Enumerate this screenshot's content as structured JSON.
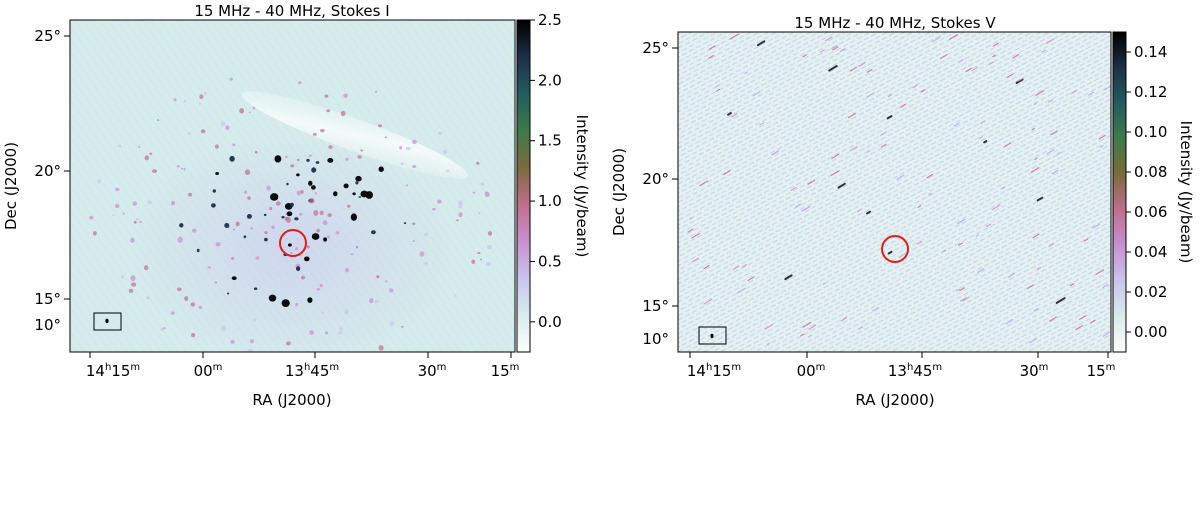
{
  "chart_data": [
    {
      "type": "heatmap",
      "title": "15 MHz - 40 MHz, Stokes I",
      "xlabel": "RA (J2000)",
      "ylabel": "Dec (J2000)",
      "x_ticks": [
        {
          "h": "14",
          "m": "15"
        },
        {
          "h": "",
          "m": "00"
        },
        {
          "h": "13",
          "m": "45"
        },
        {
          "h": "",
          "m": "30"
        },
        {
          "h": "",
          "m": "15"
        }
      ],
      "y_ticks": [
        "25°",
        "20°",
        "15°",
        "10°"
      ],
      "colorbar": {
        "label": "Intensity (Jy/beam)",
        "min": -0.25,
        "max": 2.5,
        "ticks": [
          "2.5",
          "2.0",
          "1.5",
          "1.0",
          "0.5",
          "0.0"
        ],
        "tick_values": [
          2.5,
          2.0,
          1.5,
          1.0,
          0.5,
          0.0
        ]
      },
      "colormap": [
        "#fdfdfb",
        "#d8ecec",
        "#c9c4ee",
        "#c98fd2",
        "#c06f8e",
        "#7c6a3c",
        "#3e7a4a",
        "#235c5e",
        "#1c2f48",
        "#000000"
      ],
      "target_marker_color": "#e41a1c"
    },
    {
      "type": "heatmap",
      "title": "15 MHz - 40 MHz, Stokes V",
      "xlabel": "RA (J2000)",
      "ylabel": "Dec (J2000)",
      "x_ticks": [
        {
          "h": "14",
          "m": "15"
        },
        {
          "h": "",
          "m": "00"
        },
        {
          "h": "13",
          "m": "45"
        },
        {
          "h": "",
          "m": "30"
        },
        {
          "h": "",
          "m": "15"
        }
      ],
      "y_ticks": [
        "25°",
        "20°",
        "15°",
        "10°"
      ],
      "colorbar": {
        "label": "Intensity (Jy/beam)",
        "min": -0.01,
        "max": 0.15,
        "ticks": [
          "0.14",
          "0.12",
          "0.10",
          "0.08",
          "0.06",
          "0.04",
          "0.02",
          "0.00"
        ],
        "tick_values": [
          0.14,
          0.12,
          0.1,
          0.08,
          0.06,
          0.04,
          0.02,
          0.0
        ]
      },
      "colormap": [
        "#fdfdfb",
        "#d8ecec",
        "#c9c4ee",
        "#c98fd2",
        "#c06f8e",
        "#7c6a3c",
        "#3e7a4a",
        "#235c5e",
        "#1c2f48",
        "#000000"
      ],
      "target_marker_color": "#e41a1c"
    }
  ]
}
